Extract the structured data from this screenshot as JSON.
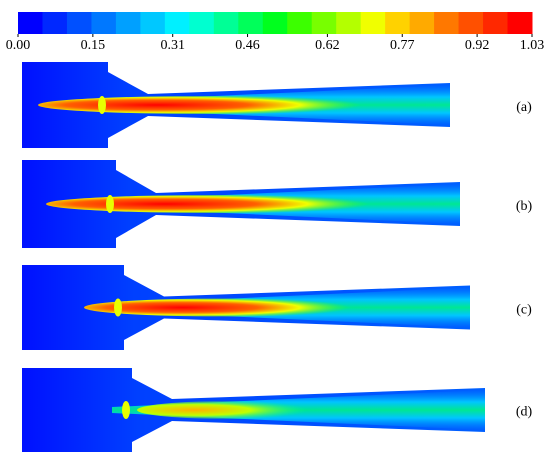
{
  "colorbar": {
    "lim": [
      0,
      1.03
    ],
    "colors": [
      "#0000ff",
      "#0028ff",
      "#0050ff",
      "#0078ff",
      "#00a0ff",
      "#00c8ff",
      "#00f0ff",
      "#00ffd0",
      "#00ff96",
      "#00ff5a",
      "#00ff1e",
      "#3cff00",
      "#78ff00",
      "#b4ff00",
      "#f0ff00",
      "#ffd200",
      "#ffaa00",
      "#ff7800",
      "#ff5000",
      "#ff2800",
      "#ff0000"
    ],
    "ticks": [
      {
        "value": 0,
        "label": "0.00"
      },
      {
        "value": 0.15,
        "label": "0.15"
      },
      {
        "value": 0.31,
        "label": "0.31"
      },
      {
        "value": 0.46,
        "label": "0.46"
      },
      {
        "value": 0.62,
        "label": "0.62"
      },
      {
        "value": 0.77,
        "label": "0.77"
      },
      {
        "value": 0.92,
        "label": "0.92"
      },
      {
        "value": 1.03,
        "label": "1.03"
      }
    ]
  },
  "panels": [
    {
      "label": "(a)"
    },
    {
      "label": "(b)"
    },
    {
      "label": "(c)"
    },
    {
      "label": "(d)"
    }
  ]
}
